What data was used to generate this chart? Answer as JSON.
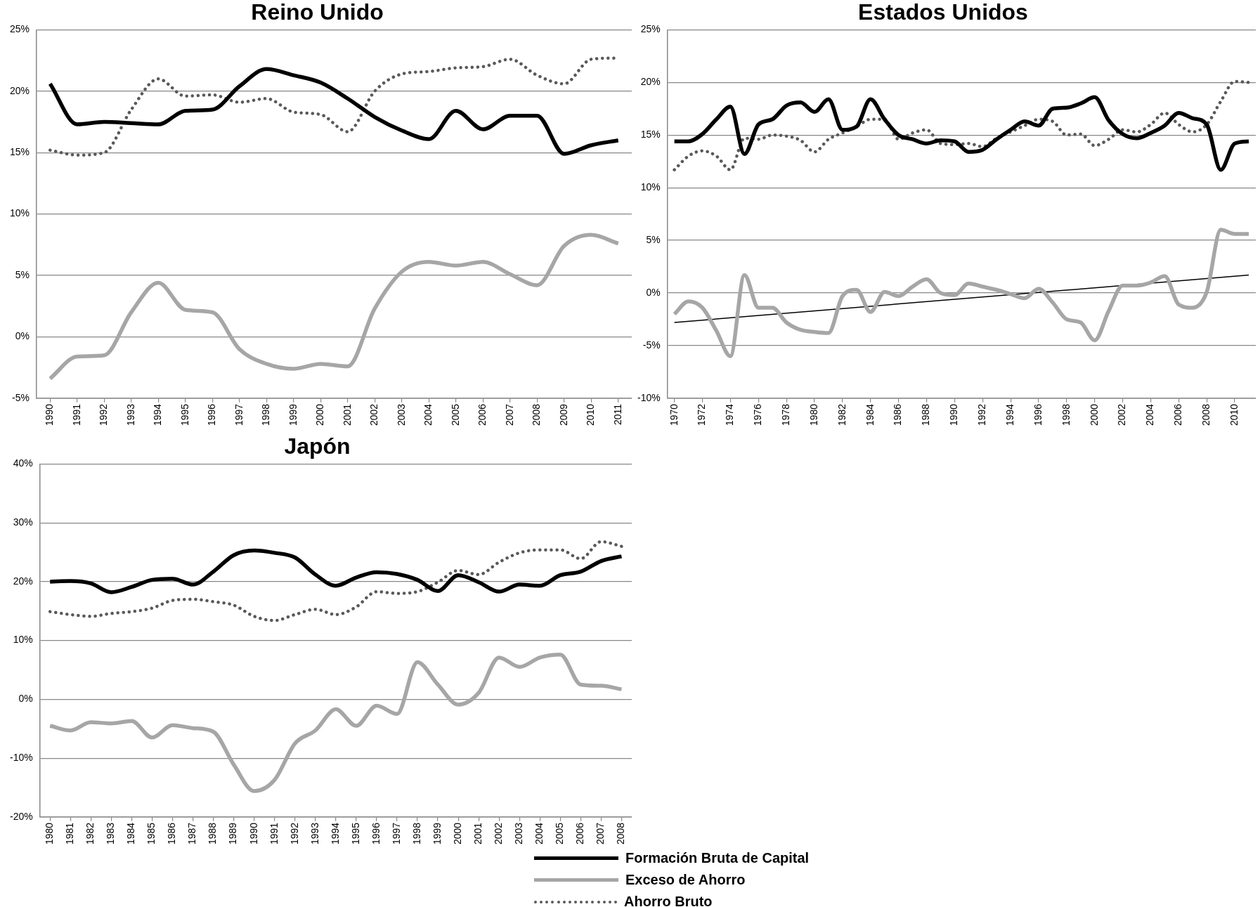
{
  "chart_data": [
    {
      "type": "line",
      "title": "Reino Unido",
      "categories": [
        "1990",
        "1991",
        "1992",
        "1993",
        "1994",
        "1995",
        "1996",
        "1997",
        "1998",
        "1999",
        "2000",
        "2001",
        "2002",
        "2003",
        "2004",
        "2005",
        "2006",
        "2007",
        "2008",
        "2009",
        "2010",
        "2011"
      ],
      "ylim": [
        -5,
        25
      ],
      "yticks": [
        {
          "value": -5,
          "label": "-5%"
        },
        {
          "value": 0,
          "label": "0%"
        },
        {
          "value": 5,
          "label": "5%"
        },
        {
          "value": 10,
          "label": "10%"
        },
        {
          "value": 15,
          "label": "15%"
        },
        {
          "value": 20,
          "label": "20%"
        },
        {
          "value": 25,
          "label": "25%"
        }
      ],
      "grid": "y",
      "legend": false,
      "marker": "none",
      "series": [
        {
          "color": "#000000",
          "line_style": "solid",
          "values": [
            20.6,
            17.3,
            17.5,
            17.4,
            17.3,
            18.4,
            18.5,
            20.4,
            21.8,
            21.3,
            20.7,
            19.4,
            17.9,
            16.8,
            16.1,
            18.4,
            16.9,
            18.0,
            18.0,
            14.9,
            15.6,
            16.0
          ]
        },
        {
          "color": "#a6a6a6",
          "line_style": "solid",
          "values": [
            -3.4,
            -1.6,
            -1.5,
            2.0,
            4.4,
            2.2,
            2.0,
            -1.0,
            -2.2,
            -2.6,
            -2.2,
            -2.4,
            2.3,
            5.3,
            6.1,
            5.8,
            6.1,
            5.1,
            4.2,
            7.4,
            8.3,
            7.6
          ]
        },
        {
          "color": "#595959",
          "line_style": "dotted",
          "values": [
            15.2,
            14.8,
            15.0,
            18.5,
            21.0,
            19.6,
            19.7,
            19.1,
            19.4,
            18.3,
            18.1,
            16.7,
            20.0,
            21.4,
            21.6,
            21.9,
            22.0,
            22.6,
            21.3,
            20.6,
            22.6,
            22.7
          ]
        }
      ]
    },
    {
      "type": "line",
      "title": "Estados Unidos",
      "x": [
        1970,
        1971,
        1972,
        1973,
        1974,
        1975,
        1976,
        1977,
        1978,
        1979,
        1980,
        1981,
        1982,
        1983,
        1984,
        1985,
        1986,
        1987,
        1988,
        1989,
        1990,
        1991,
        1992,
        1993,
        1994,
        1995,
        1996,
        1997,
        1998,
        1999,
        2000,
        2001,
        2002,
        2003,
        2004,
        2005,
        2006,
        2007,
        2008,
        2009,
        2010,
        2011
      ],
      "xlim": [
        1969.5,
        2011.5
      ],
      "xticks": [
        1970,
        1972,
        1974,
        1976,
        1978,
        1980,
        1982,
        1984,
        1986,
        1988,
        1990,
        1992,
        1994,
        1996,
        1998,
        2000,
        2002,
        2004,
        2006,
        2008,
        2010
      ],
      "ylim": [
        -10,
        25
      ],
      "yticks": [
        {
          "value": -10,
          "label": "-10%"
        },
        {
          "value": -5,
          "label": "-5%"
        },
        {
          "value": 0,
          "label": "0%"
        },
        {
          "value": 5,
          "label": "5%"
        },
        {
          "value": 10,
          "label": "10%"
        },
        {
          "value": 15,
          "label": "15%"
        },
        {
          "value": 20,
          "label": "20%"
        },
        {
          "value": 25,
          "label": "25%"
        }
      ],
      "grid": "y",
      "legend": false,
      "marker": "none",
      "series": [
        {
          "color": "#000000",
          "line_style": "solid",
          "values": [
            14.4,
            14.4,
            15.1,
            16.5,
            17.7,
            13.2,
            16.0,
            16.5,
            17.8,
            18.1,
            17.2,
            18.4,
            15.5,
            15.8,
            18.4,
            16.5,
            15.0,
            14.6,
            14.2,
            14.5,
            14.4,
            13.4,
            13.6,
            14.6,
            15.5,
            16.3,
            15.9,
            17.5,
            17.6,
            18.0,
            18.6,
            16.4,
            15.1,
            14.7,
            15.2,
            15.9,
            17.1,
            16.6,
            16.0,
            11.7,
            14.2,
            14.4
          ]
        },
        {
          "color": "#a6a6a6",
          "line_style": "solid",
          "values": [
            -2.0,
            -0.8,
            -1.4,
            -3.6,
            -6.0,
            1.7,
            -1.4,
            -1.4,
            -2.8,
            -3.5,
            -3.7,
            -3.8,
            -0.3,
            0.3,
            -1.8,
            0.1,
            -0.3,
            0.6,
            1.3,
            0.0,
            -0.2,
            0.9,
            0.6,
            0.3,
            -0.1,
            -0.5,
            0.4,
            -0.9,
            -2.5,
            -2.8,
            -4.5,
            -1.7,
            0.7,
            0.7,
            1.0,
            1.6,
            -1.1,
            -1.4,
            0.1,
            6.0,
            5.6,
            5.6
          ]
        },
        {
          "color": "#595959",
          "line_style": "dotted",
          "values": [
            11.7,
            13.0,
            13.5,
            13.0,
            11.7,
            14.7,
            14.6,
            15.0,
            14.9,
            14.5,
            13.4,
            14.6,
            15.2,
            15.8,
            16.5,
            16.5,
            14.6,
            15.2,
            15.5,
            14.2,
            14.1,
            14.2,
            13.9,
            14.7,
            15.3,
            15.9,
            16.5,
            16.3,
            15.0,
            15.1,
            14.0,
            14.6,
            15.5,
            15.3,
            16.0,
            17.1,
            16.0,
            15.3,
            16.0,
            18.2,
            20.1,
            20.0
          ]
        },
        {
          "type": "line",
          "color": "#000000",
          "line_style": "solid",
          "x": [
            1970,
            2011
          ],
          "values": [
            -2.8,
            1.7
          ]
        }
      ]
    },
    {
      "type": "line",
      "title": "Japón",
      "categories": [
        "1980",
        "1981",
        "1982",
        "1983",
        "1984",
        "1985",
        "1986",
        "1987",
        "1988",
        "1989",
        "1990",
        "1991",
        "1992",
        "1993",
        "1994",
        "1995",
        "1996",
        "1997",
        "1998",
        "1999",
        "2000",
        "2001",
        "2002",
        "2003",
        "2004",
        "2005",
        "2006",
        "2007",
        "2008"
      ],
      "ylim": [
        -20,
        40
      ],
      "yticks": [
        {
          "value": -20,
          "label": "-20%"
        },
        {
          "value": -10,
          "label": "-10%"
        },
        {
          "value": 0,
          "label": "0%"
        },
        {
          "value": 10,
          "label": "10%"
        },
        {
          "value": 20,
          "label": "20%"
        },
        {
          "value": 30,
          "label": "30%"
        },
        {
          "value": 40,
          "label": "40%"
        }
      ],
      "grid": "y",
      "legend": "bottom",
      "marker": "none",
      "series": [
        {
          "name": "Formación Bruta de Capital",
          "color": "#000000",
          "line_style": "solid",
          "values": [
            20.0,
            20.1,
            19.7,
            18.2,
            19.1,
            20.3,
            20.5,
            19.5,
            21.7,
            24.5,
            25.3,
            24.9,
            24.1,
            21.2,
            19.3,
            20.7,
            21.6,
            21.3,
            20.3,
            18.4,
            21.1,
            19.9,
            18.3,
            19.5,
            19.3,
            21.1,
            21.7,
            23.5,
            24.3
          ]
        },
        {
          "name": "Exceso de Ahorro",
          "color": "#a6a6a6",
          "line_style": "solid",
          "values": [
            -4.5,
            -5.3,
            -3.9,
            -4.1,
            -3.7,
            -6.5,
            -4.4,
            -4.9,
            -5.5,
            -11.1,
            -15.6,
            -13.7,
            -7.5,
            -5.3,
            -1.7,
            -4.5,
            -1.1,
            -2.5,
            6.3,
            2.5,
            -0.9,
            1.1,
            7.1,
            5.5,
            7.1,
            7.6,
            2.5,
            2.3,
            1.7
          ]
        },
        {
          "name": "Ahorro Bruto",
          "color": "#595959",
          "line_style": "dotted",
          "values": [
            14.9,
            14.4,
            14.1,
            14.6,
            14.9,
            15.5,
            16.8,
            17.0,
            16.6,
            16.0,
            14.1,
            13.4,
            14.4,
            15.3,
            14.4,
            15.7,
            18.3,
            18.0,
            18.3,
            19.9,
            21.9,
            21.2,
            23.3,
            24.9,
            25.4,
            25.4,
            23.9,
            26.8,
            26.0
          ]
        }
      ]
    }
  ]
}
